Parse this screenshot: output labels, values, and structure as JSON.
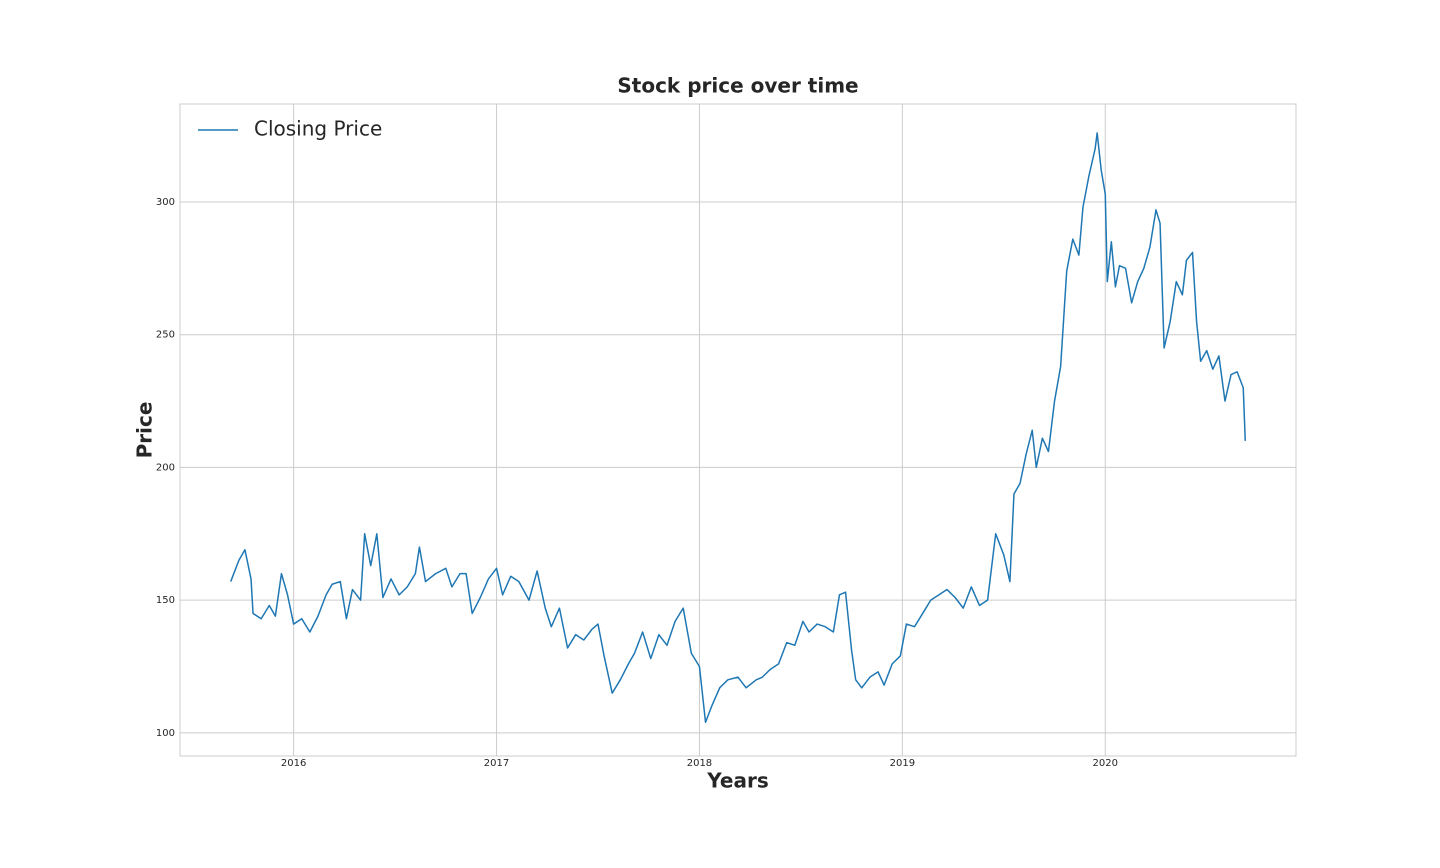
{
  "chart_data": {
    "type": "line",
    "title": "Stock price over time",
    "xlabel": "Years",
    "ylabel": "Price",
    "xlim": [
      2015.44,
      2020.94
    ],
    "ylim": [
      91.3,
      336.9
    ],
    "xticks": [
      2016,
      2017,
      2018,
      2019,
      2020
    ],
    "yticks": [
      100,
      150,
      200,
      250,
      300
    ],
    "grid": true,
    "legend": "upper left",
    "x": [
      2015.69,
      2015.73,
      2015.76,
      2015.79,
      2015.8,
      2015.84,
      2015.88,
      2015.91,
      2015.94,
      2015.97,
      2016.0,
      2016.04,
      2016.08,
      2016.12,
      2016.16,
      2016.19,
      2016.23,
      2016.26,
      2016.29,
      2016.33,
      2016.35,
      2016.38,
      2016.41,
      2016.44,
      2016.48,
      2016.52,
      2016.56,
      2016.6,
      2016.62,
      2016.65,
      2016.7,
      2016.75,
      2016.78,
      2016.82,
      2016.85,
      2016.88,
      2016.92,
      2016.96,
      2017.0,
      2017.03,
      2017.07,
      2017.11,
      2017.16,
      2017.2,
      2017.24,
      2017.27,
      2017.31,
      2017.35,
      2017.39,
      2017.43,
      2017.47,
      2017.5,
      2017.53,
      2017.57,
      2017.61,
      2017.65,
      2017.68,
      2017.72,
      2017.76,
      2017.8,
      2017.84,
      2017.88,
      2017.92,
      2017.96,
      2018.0,
      2018.03,
      2018.06,
      2018.1,
      2018.14,
      2018.19,
      2018.23,
      2018.28,
      2018.31,
      2018.35,
      2018.39,
      2018.43,
      2018.47,
      2018.51,
      2018.54,
      2018.58,
      2018.62,
      2018.66,
      2018.69,
      2018.72,
      2018.75,
      2018.77,
      2018.8,
      2018.84,
      2018.88,
      2018.91,
      2018.95,
      2018.99,
      2019.02,
      2019.06,
      2019.1,
      2019.14,
      2019.18,
      2019.22,
      2019.26,
      2019.3,
      2019.34,
      2019.38,
      2019.42,
      2019.46,
      2019.5,
      2019.53,
      2019.55,
      2019.58,
      2019.61,
      2019.64,
      2019.66,
      2019.69,
      2019.72,
      2019.75,
      2019.78,
      2019.81,
      2019.84,
      2019.87,
      2019.89,
      2019.92,
      2019.95,
      2019.96,
      2019.98,
      2020.0,
      2020.01,
      2020.03,
      2020.05,
      2020.07,
      2020.1,
      2020.13,
      2020.16,
      2020.19,
      2020.22,
      2020.25,
      2020.27,
      2020.29,
      2020.32,
      2020.35,
      2020.38,
      2020.4,
      2020.43,
      2020.45,
      2020.47,
      2020.5,
      2020.53,
      2020.56,
      2020.59,
      2020.62,
      2020.65,
      2020.68,
      2020.69
    ],
    "series": [
      {
        "name": "Closing Price",
        "color": "#1f77b4",
        "values": [
          157,
          165,
          169,
          158,
          145,
          143,
          148,
          144,
          160,
          152,
          141,
          143,
          138,
          144,
          152,
          156,
          157,
          143,
          154,
          150,
          175,
          163,
          175,
          151,
          158,
          152,
          155,
          160,
          170,
          157,
          160,
          162,
          155,
          160,
          160,
          145,
          151,
          158,
          162,
          152,
          159,
          157,
          150,
          161,
          147,
          140,
          147,
          132,
          137,
          135,
          139,
          141,
          129,
          115,
          120,
          126,
          130,
          138,
          128,
          137,
          133,
          142,
          147,
          130,
          125,
          104,
          110,
          117,
          120,
          121,
          117,
          120,
          121,
          124,
          126,
          134,
          133,
          142,
          138,
          141,
          140,
          138,
          152,
          153,
          131,
          120,
          117,
          121,
          123,
          118,
          126,
          129,
          141,
          140,
          145,
          150,
          152,
          154,
          151,
          147,
          155,
          148,
          150,
          175,
          167,
          157,
          190,
          194,
          205,
          214,
          200,
          211,
          206,
          225,
          238,
          274,
          286,
          280,
          298,
          310,
          320,
          326,
          312,
          303,
          270,
          285,
          268,
          276,
          275,
          262,
          270,
          275,
          283,
          297,
          292,
          245,
          255,
          270,
          265,
          278,
          281,
          255,
          240,
          244,
          237,
          242,
          225,
          235,
          236,
          230,
          210
        ]
      }
    ]
  }
}
